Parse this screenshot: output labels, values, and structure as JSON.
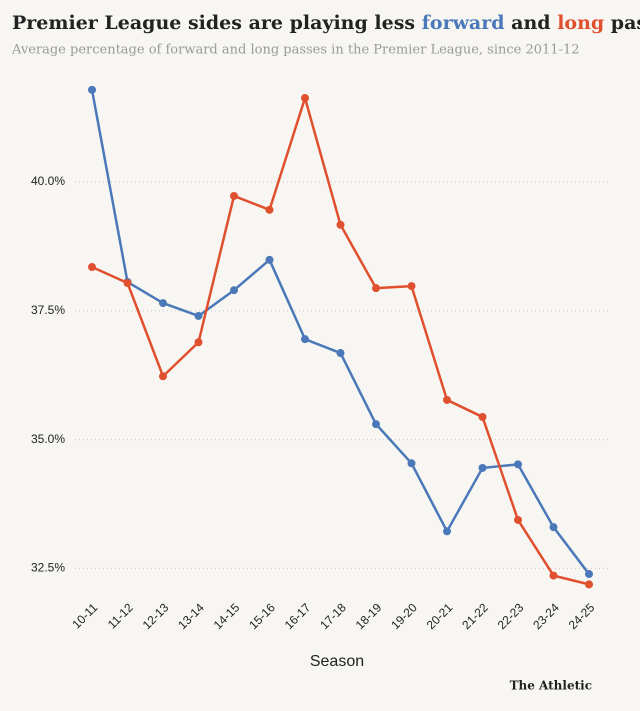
{
  "chart_data": {
    "type": "line",
    "title": [
      "Premier League sides are playing less ",
      "forward",
      " and ",
      "long",
      " passes"
    ],
    "subtitle": "Average percentage of forward and long passes in the Premier League, since 2011-12",
    "x_label": "Season",
    "source": "The Athletic",
    "categories": [
      "10-11",
      "11-12",
      "12-13",
      "13-14",
      "14-15",
      "15-16",
      "16-17",
      "17-18",
      "18-19",
      "19-20",
      "20-21",
      "21-22",
      "22-23",
      "23-24",
      "24-25"
    ],
    "series": [
      {
        "color": "#4a78b8",
        "values": [
          41.79,
          38.06,
          37.65,
          37.4,
          37.9,
          38.49,
          36.95,
          36.68,
          35.3,
          34.54,
          33.22,
          34.45,
          34.52,
          33.3,
          32.39
        ]
      },
      {
        "color": "#e0502e",
        "values": [
          38.35,
          38.04,
          36.23,
          36.89,
          39.73,
          39.46,
          41.63,
          39.17,
          37.94,
          37.98,
          35.77,
          35.44,
          33.44,
          32.36,
          32.19
        ]
      }
    ],
    "ylim": [
      32.1,
      42.0
    ],
    "yticks": [
      {
        "value": 32.5,
        "label": "32.5%"
      },
      {
        "value": 35.0,
        "label": "35.0%"
      },
      {
        "value": 37.5,
        "label": "37.5%"
      },
      {
        "value": 40.0,
        "label": "40.0%"
      }
    ],
    "grid": true
  }
}
